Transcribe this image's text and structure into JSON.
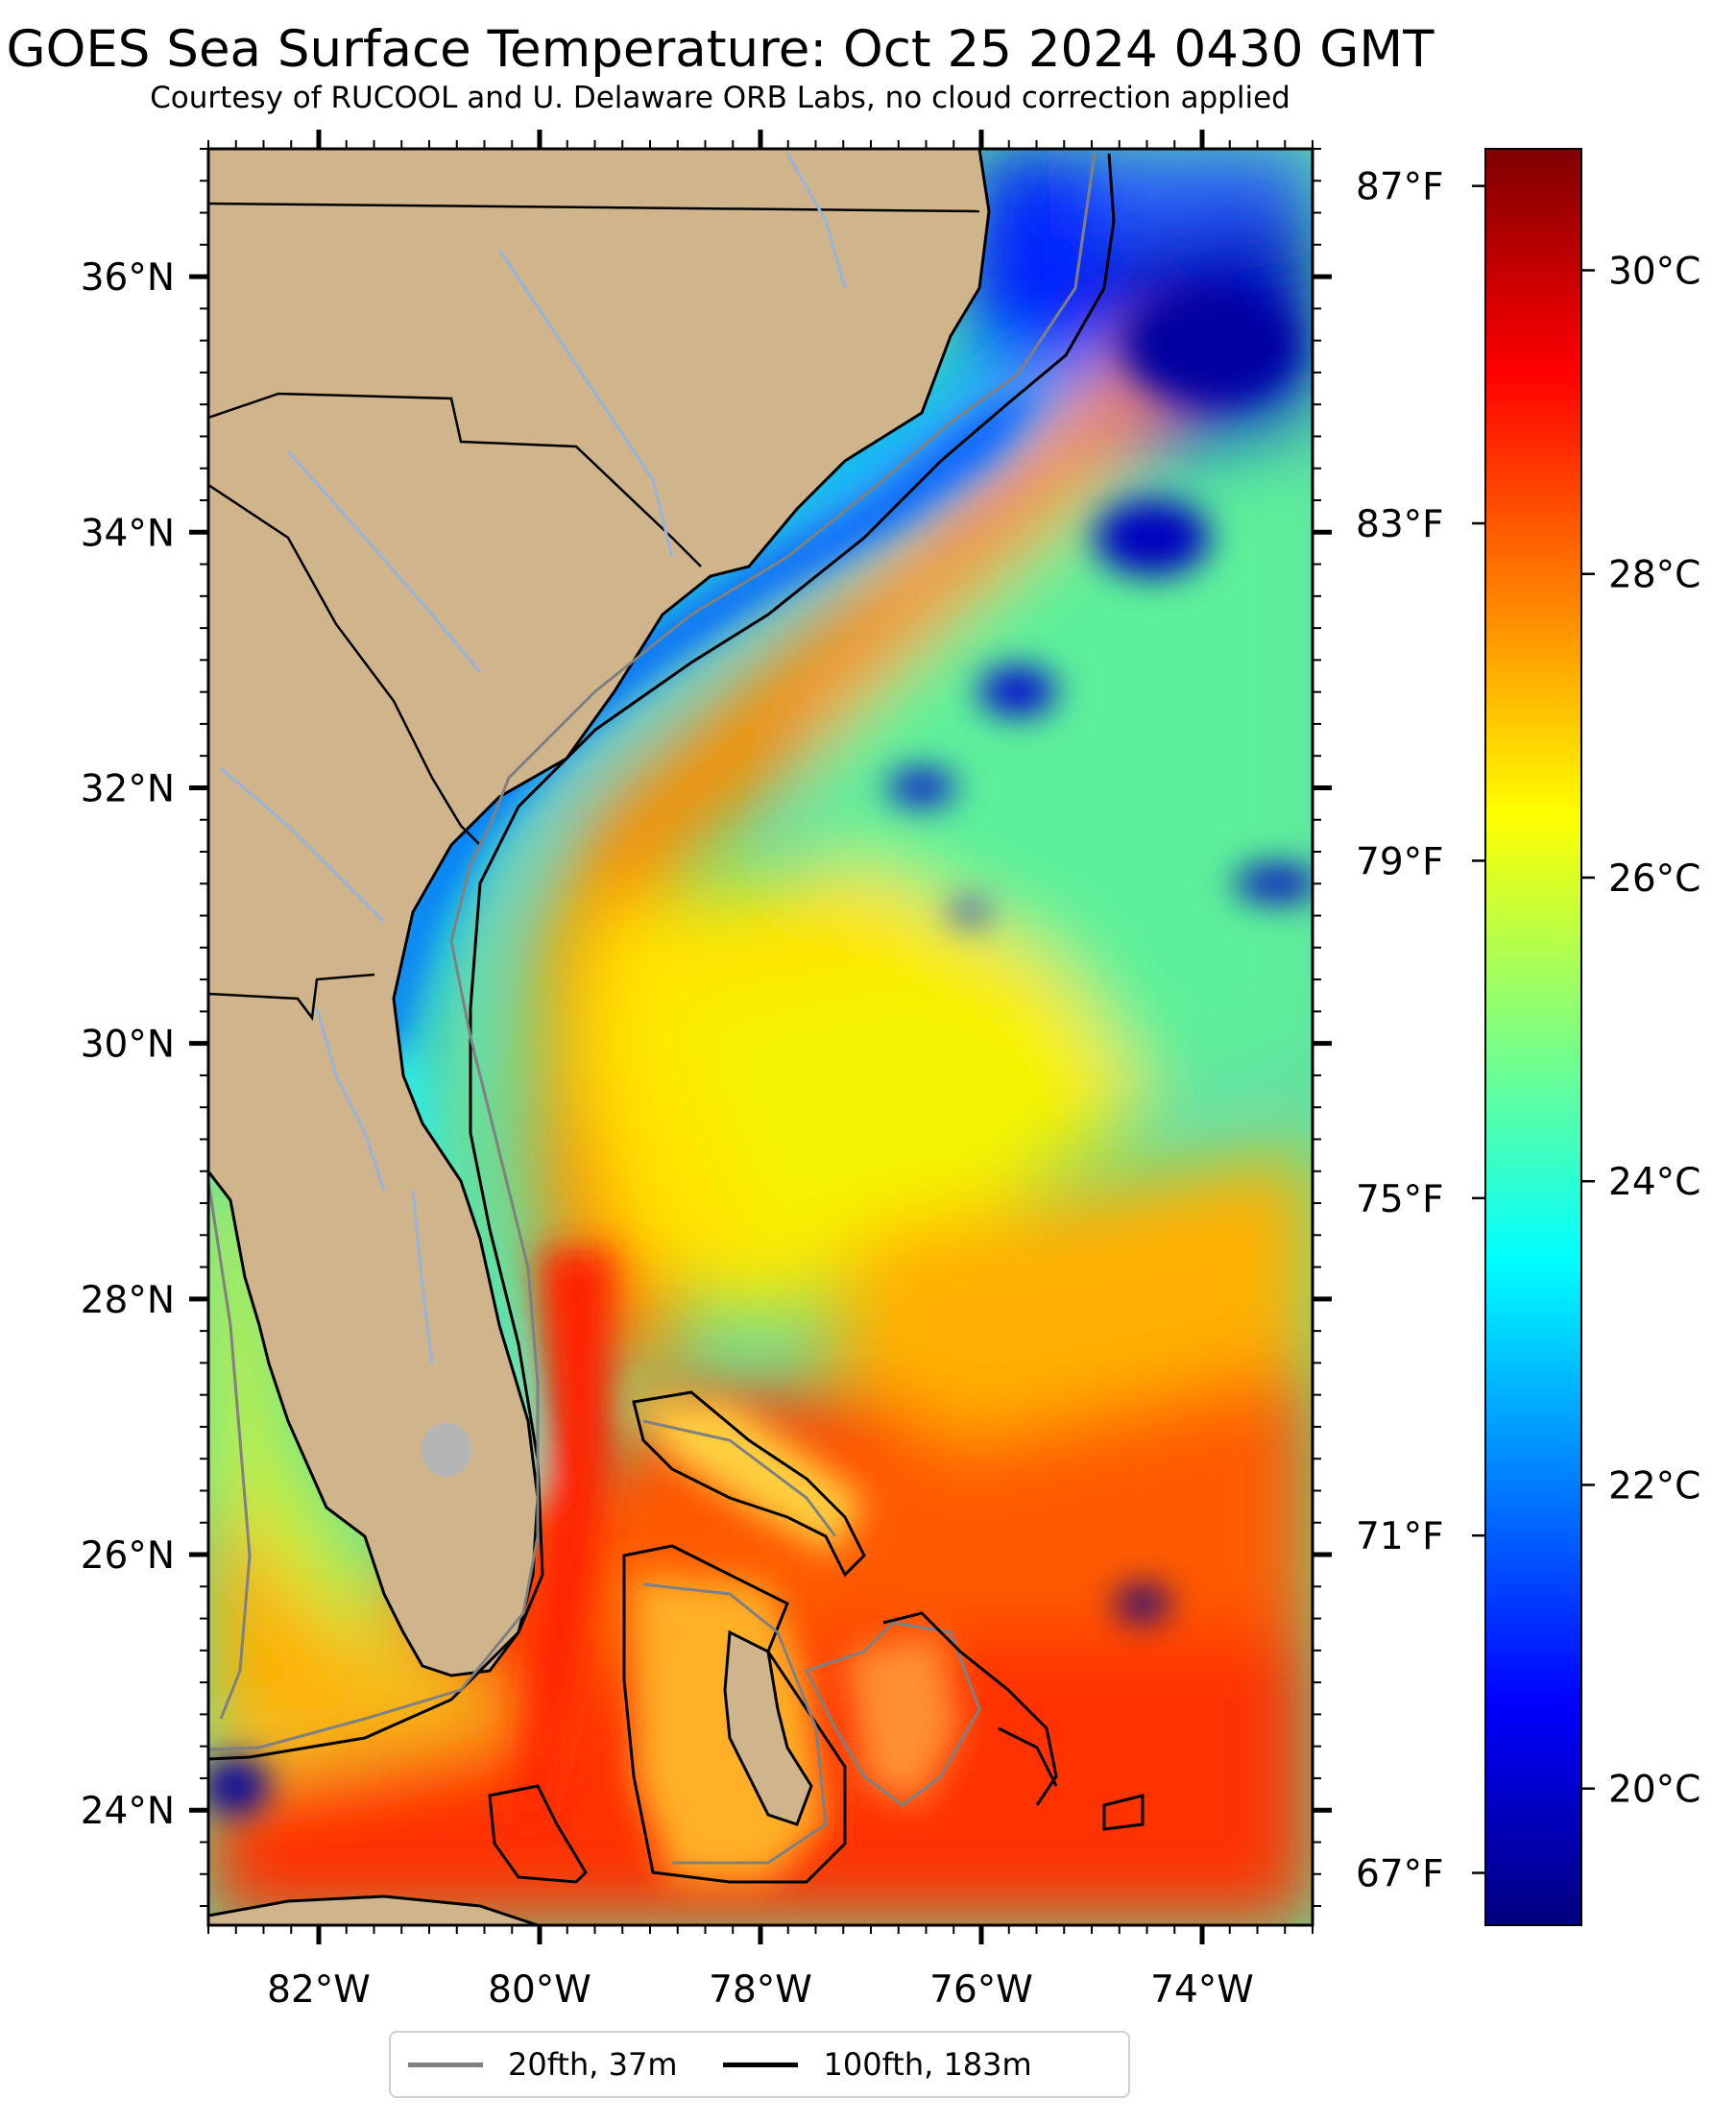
{
  "title": "GOES Sea Surface Temperature: Oct 25 2024 0430 GMT",
  "subtitle": "Courtesy of RUCOOL and U. Delaware ORB Labs, no cloud correction applied",
  "map": {
    "extent": {
      "lon_min": -83.0,
      "lon_max": -73.0,
      "lat_min": 23.1,
      "lat_max": 37.0
    },
    "lat_ticks": [
      {
        "value": 36,
        "label": "36°N"
      },
      {
        "value": 34,
        "label": "34°N"
      },
      {
        "value": 32,
        "label": "32°N"
      },
      {
        "value": 30,
        "label": "30°N"
      },
      {
        "value": 28,
        "label": "28°N"
      },
      {
        "value": 26,
        "label": "26°N"
      },
      {
        "value": 24,
        "label": "24°N"
      }
    ],
    "lon_ticks": [
      {
        "value": -82,
        "label": "82°W"
      },
      {
        "value": -80,
        "label": "80°W"
      },
      {
        "value": -78,
        "label": "78°W"
      },
      {
        "value": -76,
        "label": "76°W"
      },
      {
        "value": -74,
        "label": "74°W"
      }
    ],
    "land_color": "#d0b48c",
    "lake_color": "#b5b5b5",
    "river_color": "#9ab4d8",
    "ocean_background": "#63e0a0"
  },
  "colorbar": {
    "celsius_min": 19.1,
    "celsius_max": 30.8,
    "celsius_ticks": [
      {
        "value": 30,
        "label": "30°C"
      },
      {
        "value": 28,
        "label": "28°C"
      },
      {
        "value": 26,
        "label": "26°C"
      },
      {
        "value": 24,
        "label": "24°C"
      },
      {
        "value": 22,
        "label": "22°C"
      },
      {
        "value": 20,
        "label": "20°C"
      }
    ],
    "fahrenheit_ticks": [
      {
        "value": 87,
        "label": "87°F"
      },
      {
        "value": 83,
        "label": "83°F"
      },
      {
        "value": 79,
        "label": "79°F"
      },
      {
        "value": 75,
        "label": "75°F"
      },
      {
        "value": 71,
        "label": "71°F"
      },
      {
        "value": 67,
        "label": "67°F"
      }
    ],
    "colormap": [
      "#00007f",
      "#0000ff",
      "#007fff",
      "#00ffff",
      "#7fff7f",
      "#ffff00",
      "#ff7f00",
      "#ff0000",
      "#7f0000"
    ]
  },
  "legend": {
    "items": [
      {
        "label": "20fth, 37m",
        "color": "#808080"
      },
      {
        "label": "100fth, 183m",
        "color": "#000000"
      }
    ]
  }
}
